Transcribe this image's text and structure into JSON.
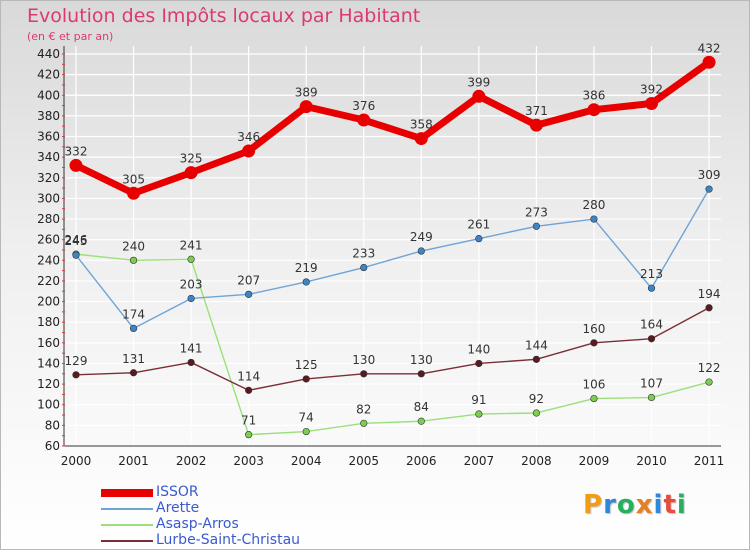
{
  "chart_data": {
    "type": "line",
    "title": "Evolution des Impôts locaux par Habitant",
    "subtitle": "(en € et par an)",
    "xlabel": "",
    "ylabel": "",
    "x": [
      "2000",
      "2001",
      "2002",
      "2003",
      "2004",
      "2005",
      "2006",
      "2007",
      "2008",
      "2009",
      "2010",
      "2011"
    ],
    "ylim": [
      60,
      440
    ],
    "yticks": [
      60,
      80,
      100,
      120,
      140,
      160,
      180,
      200,
      220,
      240,
      260,
      280,
      300,
      320,
      340,
      360,
      380,
      400,
      420,
      440
    ],
    "grid": true,
    "legend_position": "bottom-left",
    "series": [
      {
        "name": "ISSOR",
        "color": "#e80000",
        "marker_color": "#e80000",
        "values": [
          332,
          305,
          325,
          346,
          389,
          376,
          358,
          399,
          371,
          386,
          392,
          432
        ]
      },
      {
        "name": "Arette",
        "color": "#6fa4d6",
        "marker_color": "#3d85c6",
        "values": [
          245,
          174,
          203,
          207,
          219,
          233,
          249,
          261,
          273,
          280,
          213,
          309
        ]
      },
      {
        "name": "Asasp-Arros",
        "color": "#9be07a",
        "marker_color": "#7ad04e",
        "values": [
          246,
          240,
          241,
          71,
          74,
          82,
          84,
          91,
          92,
          106,
          107,
          122
        ]
      },
      {
        "name": "Lurbe-Saint-Christau",
        "color": "#7a2f35",
        "marker_color": "#5a1a20",
        "values": [
          129,
          131,
          141,
          114,
          125,
          130,
          130,
          140,
          144,
          160,
          164,
          194
        ]
      }
    ]
  },
  "brand": {
    "name": "Proxiti",
    "letters": [
      "P",
      "r",
      "o",
      "x",
      "i",
      "t",
      "i"
    ],
    "colors": [
      "#f39c12",
      "#2e86de",
      "#27ae60",
      "#e67e22",
      "#2e86de",
      "#e74c3c",
      "#27ae60"
    ]
  }
}
